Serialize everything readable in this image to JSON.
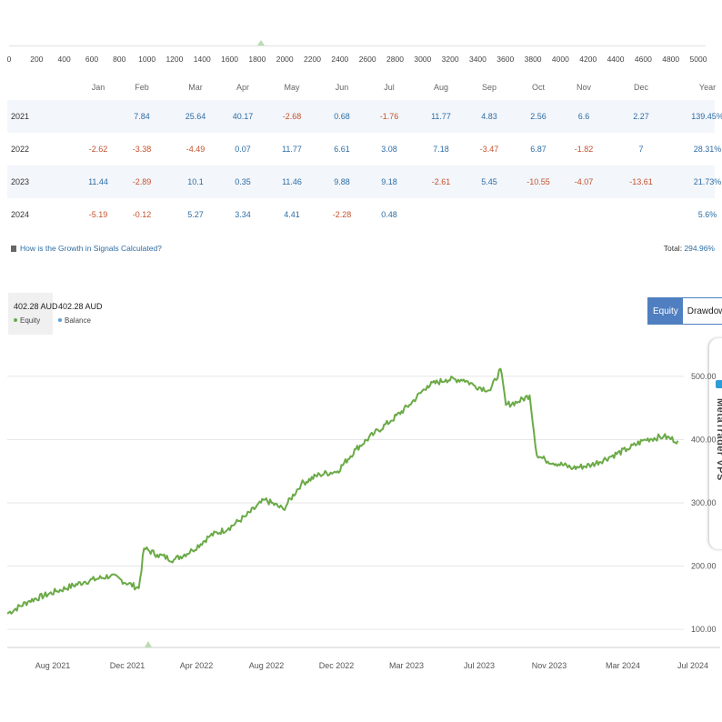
{
  "top_axis": {
    "ticks": [
      "0",
      "200",
      "400",
      "600",
      "800",
      "1000",
      "1200",
      "1400",
      "1600",
      "1800",
      "2000",
      "2200",
      "2400",
      "2600",
      "2800",
      "3000",
      "3200",
      "3400",
      "3600",
      "3800",
      "4000",
      "4200",
      "4400",
      "4600",
      "4800",
      "5000"
    ]
  },
  "table": {
    "headers": [
      "Jan",
      "Feb",
      "Mar",
      "Apr",
      "May",
      "Jun",
      "Jul",
      "Aug",
      "Sep",
      "Oct",
      "Nov",
      "Dec",
      "Year"
    ],
    "rows": [
      {
        "year": "2021",
        "cells": [
          "",
          "7.84",
          "25.64",
          "40.17",
          "-2.68",
          "0.68",
          "-1.76",
          "11.77",
          "4.83",
          "2.56",
          "6.6",
          "2.27",
          "139.45%"
        ]
      },
      {
        "year": "2022",
        "cells": [
          "-2.62",
          "-3.38",
          "-4.49",
          "0.07",
          "11.77",
          "6.61",
          "3.08",
          "7.18",
          "-3.47",
          "6.87",
          "-1.82",
          "7",
          "28.31%"
        ]
      },
      {
        "year": "2023",
        "cells": [
          "11.44",
          "-2.89",
          "10.1",
          "0.35",
          "11.46",
          "9.88",
          "9.18",
          "-2.61",
          "5.45",
          "-10.55",
          "-4.07",
          "-13.61",
          "21.73%"
        ]
      },
      {
        "year": "2024",
        "cells": [
          "-5.19",
          "-0.12",
          "5.27",
          "3.34",
          "4.41",
          "-2.28",
          "0.48",
          "",
          "",
          "",
          "",
          "",
          "5.6%"
        ]
      }
    ]
  },
  "growth_link": "How is the Growth in Signals Calculated?",
  "total": {
    "label": "Total:",
    "value": "294.96%"
  },
  "legend": {
    "equity": {
      "value": "402.28 AUD",
      "name": "Equity",
      "color": "#6aaa46"
    },
    "balance": {
      "value": "402.28 AUD",
      "name": "Balance",
      "color": "#5aa0d8"
    }
  },
  "toggle": {
    "equity": "Equity",
    "drawdown": "Drawdown"
  },
  "vps": {
    "label": "MetaTrader VPS"
  },
  "chart_data": {
    "type": "line",
    "ylim": [
      80,
      520
    ],
    "yticks": [
      100,
      200,
      300,
      400,
      500
    ],
    "ytick_labels": [
      "100.00",
      "200.00",
      "300.00",
      "400.00",
      "500.00"
    ],
    "xticks": [
      "Aug 2021",
      "Dec 2021",
      "Apr 2022",
      "Aug 2022",
      "Dec 2022",
      "Mar 2023",
      "Jul 2023",
      "Nov 2023",
      "Mar 2024",
      "Jul 2024"
    ],
    "grid": true,
    "series": [
      {
        "color": "#6aaa46",
        "x": [
          "2021-05-25",
          "2021-07-01",
          "2021-08-15",
          "2021-10-01",
          "2021-11-15",
          "2022-01-01",
          "2022-01-10",
          "2022-02-01",
          "2022-03-01",
          "2022-04-01",
          "2022-05-01",
          "2022-06-01",
          "2022-07-01",
          "2022-08-01",
          "2022-09-01",
          "2022-10-01",
          "2022-11-01",
          "2022-12-01",
          "2023-01-01",
          "2023-02-01",
          "2023-03-01",
          "2023-04-01",
          "2023-05-01",
          "2023-06-01",
          "2023-07-01",
          "2023-07-20",
          "2023-08-15",
          "2023-09-01",
          "2023-09-10",
          "2023-10-01",
          "2023-10-20",
          "2023-11-01",
          "2023-11-15",
          "2024-01-01",
          "2024-02-01",
          "2024-03-01",
          "2024-04-01",
          "2024-05-01",
          "2024-06-01",
          "2024-06-25"
        ],
        "values": [
          125,
          145,
          160,
          175,
          185,
          165,
          228,
          218,
          210,
          225,
          248,
          260,
          280,
          305,
          290,
          330,
          345,
          350,
          385,
          410,
          430,
          455,
          485,
          495,
          495,
          485,
          478,
          512,
          455,
          460,
          470,
          375,
          368,
          355,
          360,
          372,
          385,
          400,
          405,
          398
        ]
      }
    ]
  }
}
